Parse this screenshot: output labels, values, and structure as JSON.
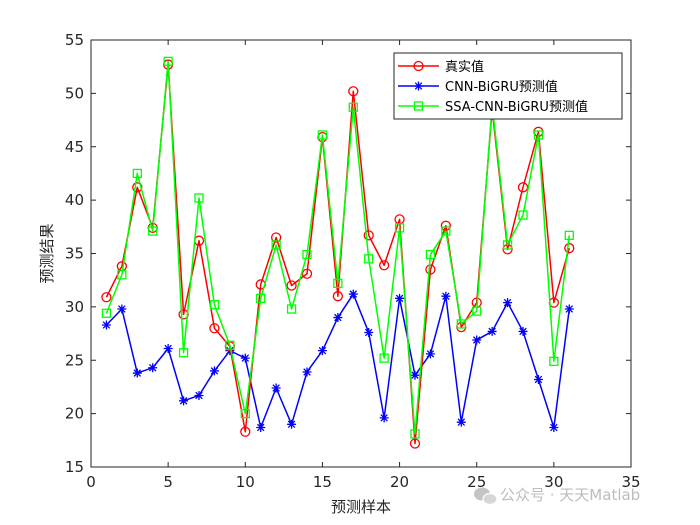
{
  "chart_data": {
    "type": "line",
    "xlabel": "预测样本",
    "ylabel": "预测结果",
    "xlim": [
      0,
      35
    ],
    "ylim": [
      15,
      55
    ],
    "xticks": [
      0,
      5,
      10,
      15,
      20,
      25,
      30,
      35
    ],
    "yticks": [
      15,
      20,
      25,
      30,
      35,
      40,
      45,
      50,
      55
    ],
    "grid": false,
    "legend_position": "top-right",
    "x": [
      1,
      2,
      3,
      4,
      5,
      6,
      7,
      8,
      9,
      10,
      11,
      12,
      13,
      14,
      15,
      16,
      17,
      18,
      19,
      20,
      21,
      22,
      23,
      24,
      25,
      26,
      27,
      28,
      29,
      30,
      31
    ],
    "series": [
      {
        "name": "真实值",
        "color": "#ff0000",
        "marker": "circle",
        "values": [
          30.9,
          33.8,
          41.2,
          37.4,
          52.7,
          29.3,
          36.2,
          28.0,
          26.3,
          18.3,
          32.1,
          36.5,
          32.0,
          33.1,
          45.9,
          31.0,
          50.2,
          36.7,
          33.9,
          38.2,
          17.2,
          33.5,
          37.6,
          28.1,
          30.4,
          48.5,
          35.4,
          41.2,
          46.4,
          30.4,
          35.5
        ]
      },
      {
        "name": "CNN-BiGRU预测值",
        "color": "#0000ff",
        "marker": "star",
        "values": [
          28.3,
          29.8,
          23.8,
          24.3,
          26.1,
          21.2,
          21.7,
          24.0,
          25.9,
          25.2,
          18.7,
          22.4,
          19.0,
          23.9,
          25.9,
          29.0,
          31.2,
          27.6,
          19.6,
          30.8,
          23.6,
          25.6,
          31.0,
          19.2,
          26.9,
          27.7,
          30.4,
          27.7,
          23.2,
          18.7,
          29.8
        ]
      },
      {
        "name": "SSA-CNN-BiGRU预测值",
        "color": "#00ff00",
        "marker": "square",
        "values": [
          29.4,
          33.0,
          42.5,
          37.1,
          53.0,
          25.7,
          40.2,
          30.2,
          26.4,
          20.0,
          30.8,
          35.8,
          29.8,
          34.9,
          46.1,
          32.2,
          48.7,
          34.5,
          25.2,
          37.4,
          18.1,
          34.9,
          37.1,
          28.4,
          29.6,
          48.9,
          35.8,
          38.6,
          46.1,
          24.9,
          36.7
        ]
      }
    ]
  },
  "watermark": {
    "text": "公众号 · 天天Matlab"
  }
}
